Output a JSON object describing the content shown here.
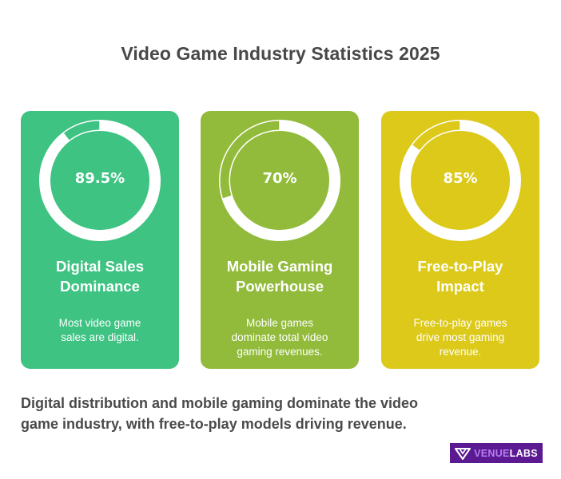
{
  "header": {
    "title": "Video Game Industry Statistics 2025"
  },
  "cards": [
    {
      "value_label": "89.5%",
      "title_line1": "Digital Sales",
      "title_line2": "Dominance",
      "desc_line1": "Most video game",
      "desc_line2": "sales are digital.",
      "desc_line3": "",
      "color": "#3ec383"
    },
    {
      "value_label": "70%",
      "title_line1": "Mobile Gaming",
      "title_line2": "Powerhouse",
      "desc_line1": "Mobile games",
      "desc_line2": "dominate total video",
      "desc_line3": "gaming revenues.",
      "color": "#92bb3b"
    },
    {
      "value_label": "85%",
      "title_line1": "Free-to-Play",
      "title_line2": "Impact",
      "desc_line1": "Free-to-play games",
      "desc_line2": "drive most gaming",
      "desc_line3": "revenue.",
      "color": "#dcc91a"
    }
  ],
  "summary": {
    "line1": "Digital distribution and mobile gaming dominate the video",
    "line2": "game industry, with free-to-play models driving revenue."
  },
  "logo": {
    "part1": "VENUE",
    "part2": "LABS",
    "bg": "#5b1a92"
  },
  "chart_data": {
    "type": "pie",
    "title": "Video Game Industry Statistics 2025",
    "categories": [
      "Digital Sales Dominance",
      "Mobile Gaming Powerhouse",
      "Free-to-Play Impact"
    ],
    "values": [
      89.5,
      70,
      85
    ],
    "unit": "%",
    "style": "donut progress rings (one per category, 0–100%)",
    "annotations": [
      "Most video game sales are digital.",
      "Mobile games dominate total video gaming revenues.",
      "Free-to-play games drive most gaming revenue."
    ],
    "colors": [
      "#3ec383",
      "#92bb3b",
      "#dcc91a"
    ]
  }
}
